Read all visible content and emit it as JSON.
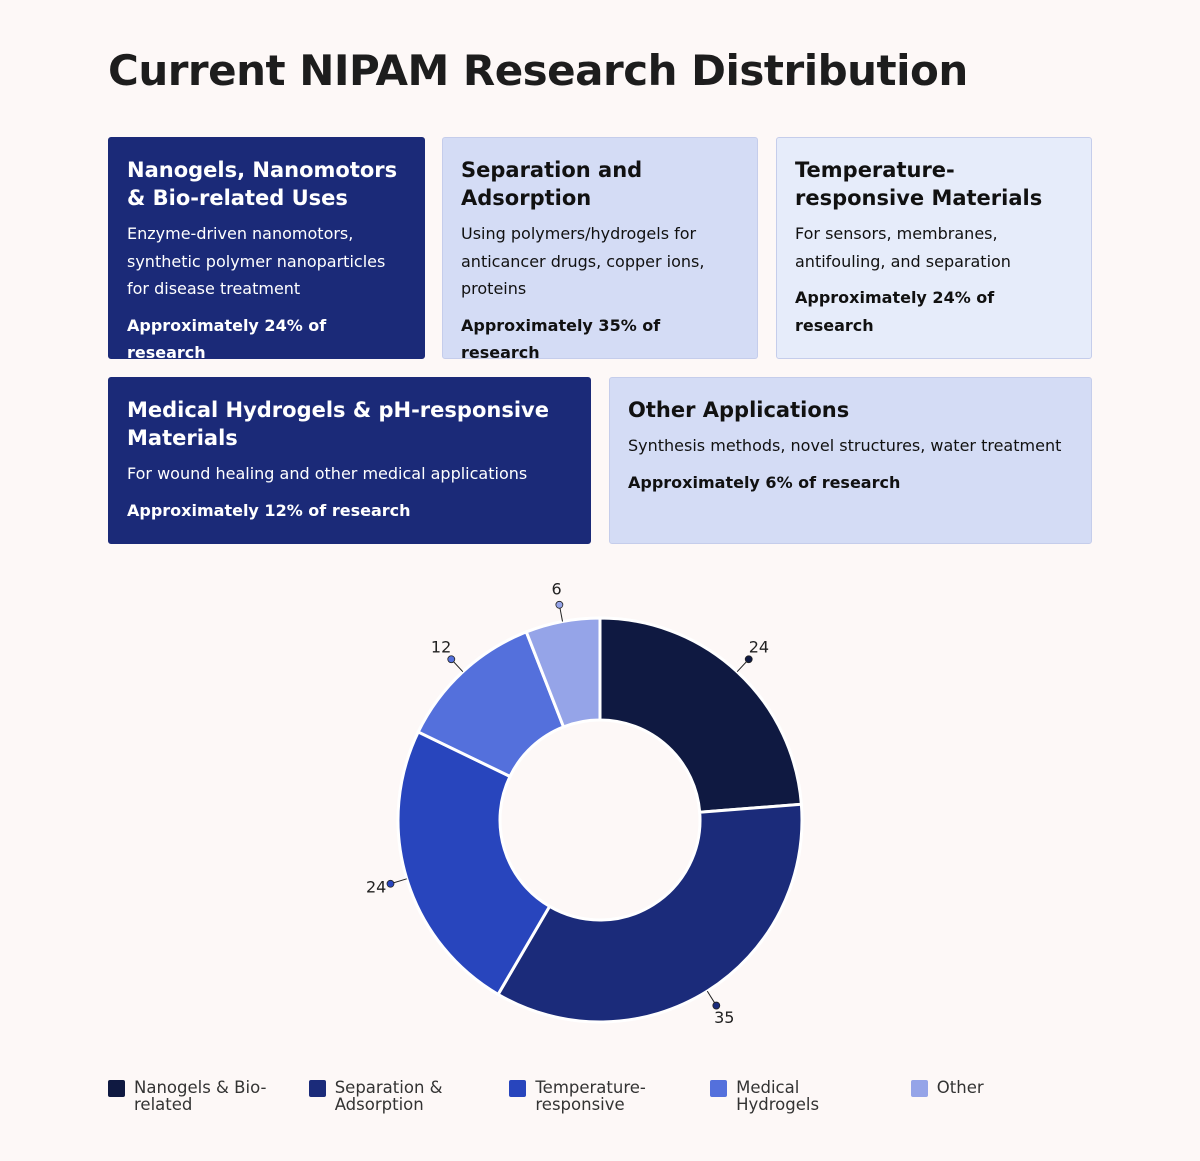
{
  "title": "Current NIPAM Research Distribution",
  "cards": [
    {
      "title": "Nanogels, Nanomotors & Bio-related Uses",
      "description": "Enzyme-driven nanomotors, synthetic polymer nanoparticles for disease treatment",
      "stat": "Approximately 24% of research"
    },
    {
      "title": "Separation and Adsorption",
      "description": "Using polymers/hydrogels for anticancer drugs, copper ions, proteins",
      "stat": "Approximately 35% of research"
    },
    {
      "title": "Temperature-responsive Materials",
      "description": "For sensors, membranes, antifouling, and separation",
      "stat": "Approximately 24% of research"
    },
    {
      "title": "Medical Hydrogels & pH-responsive Materials",
      "description": "For wound healing and other medical applications",
      "stat": "Approximately 12% of research"
    },
    {
      "title": "Other Applications",
      "description": "Synthesis methods, novel structures, water treatment",
      "stat": "Approximately 6% of research"
    }
  ],
  "chart_data": {
    "type": "donut",
    "categories": [
      "Nanogels & Bio-related",
      "Separation & Adsorption",
      "Temperature-responsive",
      "Medical Hydrogels",
      "Other"
    ],
    "values": [
      24,
      35,
      24,
      12,
      6
    ],
    "colors": [
      "#0f1941",
      "#1b2b7a",
      "#2845bd",
      "#5470dc",
      "#95a4e8"
    ],
    "legend": "bottom"
  }
}
